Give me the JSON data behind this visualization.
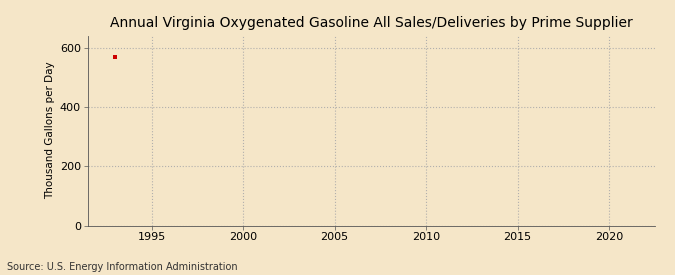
{
  "title": "Annual Virginia Oxygenated Gasoline All Sales/Deliveries by Prime Supplier",
  "ylabel": "Thousand Gallons per Day",
  "source": "Source: U.S. Energy Information Administration",
  "background_color": "#f5e6c8",
  "plot_bg_color": "#f5e6c8",
  "data_x": [
    1993
  ],
  "data_y": [
    570
  ],
  "data_color": "#cc0000",
  "xlim": [
    1991.5,
    2022.5
  ],
  "ylim": [
    0,
    640
  ],
  "yticks": [
    0,
    200,
    400,
    600
  ],
  "xticks": [
    1995,
    2000,
    2005,
    2010,
    2015,
    2020
  ],
  "grid_color": "#aaaaaa",
  "title_fontsize": 10,
  "label_fontsize": 7.5,
  "tick_fontsize": 8,
  "source_fontsize": 7
}
